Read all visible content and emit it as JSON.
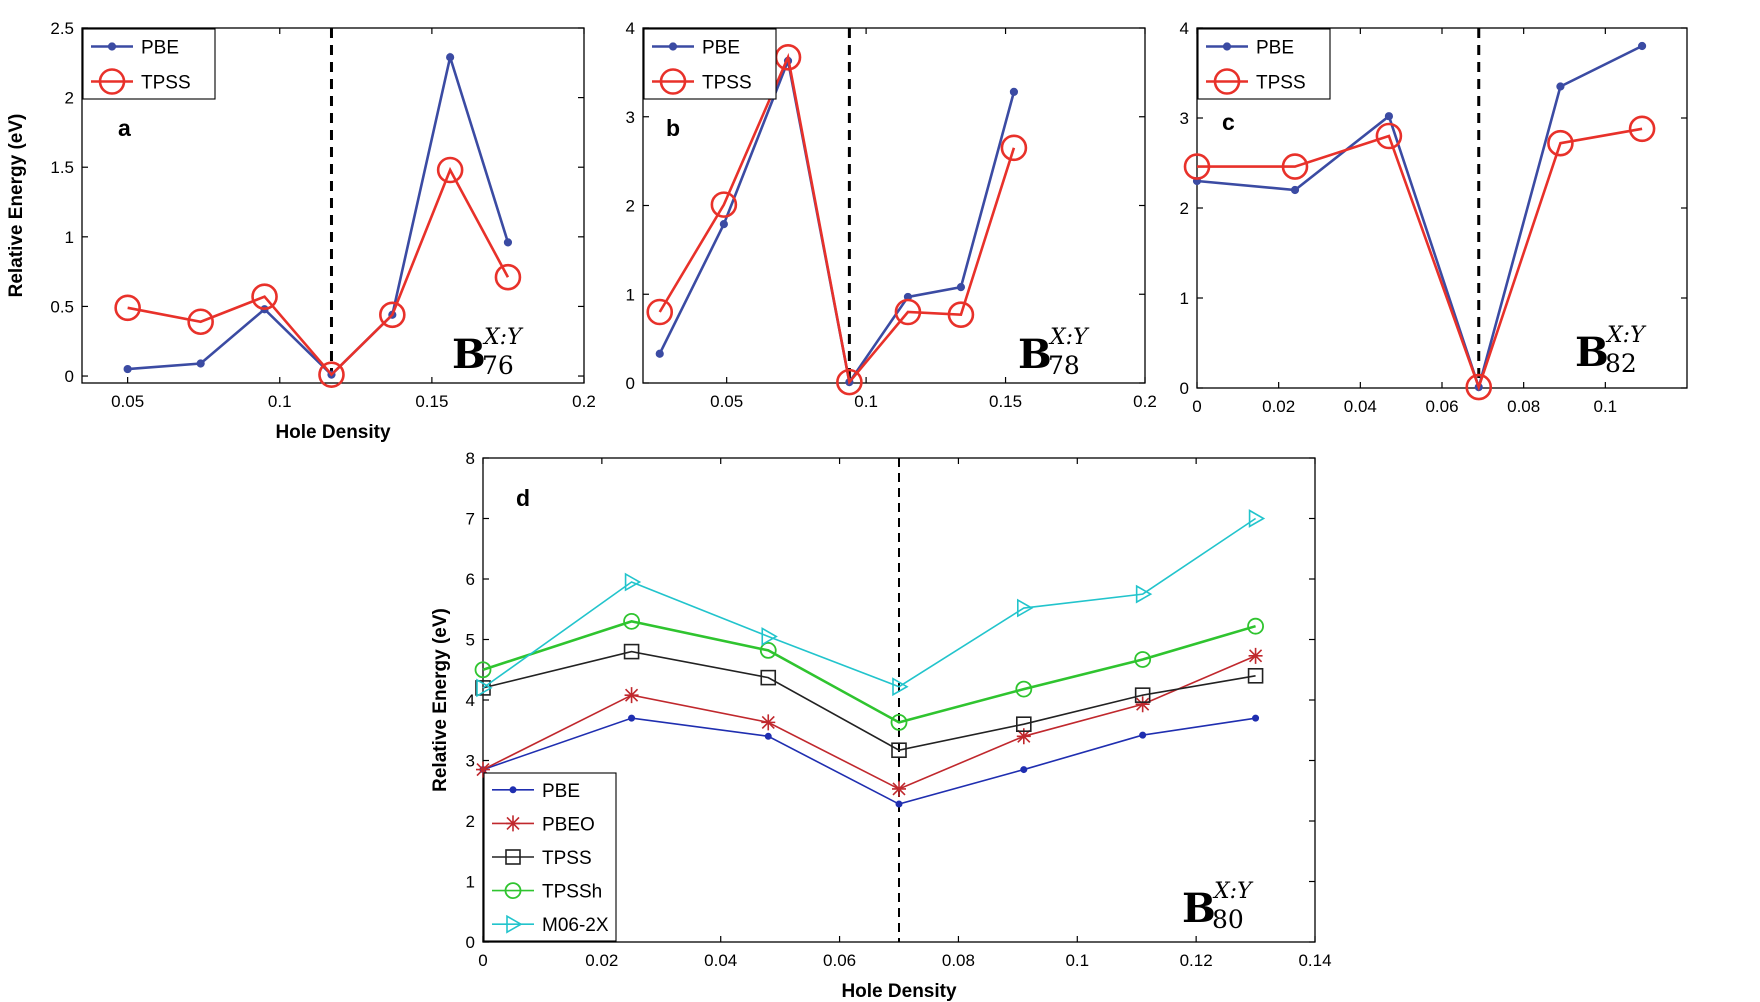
{
  "chart_data": [
    {
      "id": "a",
      "type": "line",
      "panel_label": "a",
      "annotation": {
        "base": "B",
        "subscript": "76",
        "superscript": "X:Y"
      },
      "xlabel": "Hole Density",
      "ylabel": "Relative Energy (eV)",
      "xlim": [
        0.035,
        0.2
      ],
      "ylim": [
        -0.05,
        2.5
      ],
      "xticks": [
        0.05,
        0.1,
        0.15,
        0.2
      ],
      "xtick_labels": [
        "0.05",
        "0.1",
        "0.15",
        "0.2"
      ],
      "yticks": [
        0,
        0.5,
        1,
        1.5,
        2,
        2.5
      ],
      "ytick_labels": [
        "0",
        "0.5",
        "1",
        "1.5",
        "2",
        "2.5"
      ],
      "vline_x": 0.117,
      "legend": {
        "position": "top-left",
        "entries": [
          "PBE",
          "TPSS"
        ]
      },
      "series": [
        {
          "name": "PBE",
          "color": "#3b4ba3",
          "marker": "dot",
          "x": [
            0.05,
            0.074,
            0.095,
            0.117,
            0.137,
            0.156,
            0.175
          ],
          "y": [
            0.05,
            0.09,
            0.48,
            0.01,
            0.44,
            2.29,
            0.96
          ]
        },
        {
          "name": "TPSS",
          "color": "#e8312a",
          "marker": "circle",
          "x": [
            0.05,
            0.074,
            0.095,
            0.117,
            0.137,
            0.156,
            0.175
          ],
          "y": [
            0.49,
            0.39,
            0.57,
            0.01,
            0.44,
            1.48,
            0.71
          ]
        }
      ]
    },
    {
      "id": "b",
      "type": "line",
      "panel_label": "b",
      "annotation": {
        "base": "B",
        "subscript": "78",
        "superscript": "X:Y"
      },
      "xlabel": "",
      "ylabel": "",
      "xlim": [
        0.02,
        0.2
      ],
      "ylim": [
        0,
        4
      ],
      "xticks": [
        0.05,
        0.1,
        0.15,
        0.2
      ],
      "xtick_labels": [
        "0.05",
        "0.1",
        "0.15",
        "0.2"
      ],
      "yticks": [
        0,
        1,
        2,
        3,
        4
      ],
      "ytick_labels": [
        "0",
        "1",
        "2",
        "3",
        "4"
      ],
      "vline_x": 0.094,
      "legend": {
        "position": "top-left",
        "entries": [
          "PBE",
          "TPSS"
        ]
      },
      "series": [
        {
          "name": "PBE",
          "color": "#3b4ba3",
          "marker": "dot",
          "x": [
            0.026,
            0.049,
            0.072,
            0.094,
            0.115,
            0.134,
            0.153
          ],
          "y": [
            0.33,
            1.79,
            3.63,
            0.01,
            0.97,
            1.08,
            3.28
          ]
        },
        {
          "name": "TPSS",
          "color": "#e8312a",
          "marker": "circle",
          "x": [
            0.026,
            0.049,
            0.072,
            0.094,
            0.115,
            0.134,
            0.153
          ],
          "y": [
            0.8,
            2.01,
            3.67,
            0.01,
            0.8,
            0.77,
            2.65
          ]
        }
      ]
    },
    {
      "id": "c",
      "type": "line",
      "panel_label": "c",
      "annotation": {
        "base": "B",
        "subscript": "82",
        "superscript": "X:Y"
      },
      "xlabel": "",
      "ylabel": "",
      "xlim": [
        0,
        0.12
      ],
      "ylim": [
        0,
        4
      ],
      "xticks": [
        0,
        0.02,
        0.04,
        0.06,
        0.08,
        0.1
      ],
      "xtick_labels": [
        "0",
        "0.02",
        "0.04",
        "0.06",
        "0.08",
        "0.1"
      ],
      "yticks": [
        0,
        1,
        2,
        3,
        4
      ],
      "ytick_labels": [
        "0",
        "1",
        "2",
        "3",
        "4"
      ],
      "vline_x": 0.069,
      "legend": {
        "position": "top-left",
        "entries": [
          "PBE",
          "TPSS"
        ]
      },
      "series": [
        {
          "name": "PBE",
          "color": "#3b4ba3",
          "marker": "dot",
          "x": [
            0,
            0.024,
            0.047,
            0.069,
            0.089,
            0.109
          ],
          "y": [
            2.3,
            2.2,
            3.02,
            0.01,
            3.35,
            3.8
          ]
        },
        {
          "name": "TPSS",
          "color": "#e8312a",
          "marker": "circle",
          "x": [
            0,
            0.024,
            0.047,
            0.069,
            0.089,
            0.109
          ],
          "y": [
            2.46,
            2.46,
            2.8,
            0.01,
            2.72,
            2.88
          ]
        }
      ]
    },
    {
      "id": "d",
      "type": "line",
      "panel_label": "d",
      "annotation": {
        "base": "B",
        "subscript": "80",
        "superscript": "X:Y"
      },
      "xlabel": "Hole Density",
      "ylabel": "Relative Energy (eV)",
      "xlim": [
        0,
        0.14
      ],
      "ylim": [
        0,
        8
      ],
      "xticks": [
        0,
        0.02,
        0.04,
        0.06,
        0.08,
        0.1,
        0.12,
        0.14
      ],
      "xtick_labels": [
        "0",
        "0.02",
        "0.04",
        "0.06",
        "0.08",
        "0.1",
        "0.12",
        "0.14"
      ],
      "yticks": [
        0,
        1,
        2,
        3,
        4,
        5,
        6,
        7,
        8
      ],
      "ytick_labels": [
        "0",
        "1",
        "2",
        "3",
        "4",
        "5",
        "6",
        "7",
        "8"
      ],
      "vline_x": 0.07,
      "legend": {
        "position": "bottom-left",
        "entries": [
          "PBE",
          "PBEO",
          "TPSS",
          "TPSSh",
          "M06-2X"
        ]
      },
      "series": [
        {
          "name": "PBE",
          "color": "#1f2eb0",
          "marker": "dot",
          "x": [
            0,
            0.025,
            0.048,
            0.07,
            0.091,
            0.111,
            0.13
          ],
          "y": [
            2.85,
            3.7,
            3.4,
            2.28,
            2.85,
            3.42,
            3.7
          ]
        },
        {
          "name": "PBEO",
          "color": "#c0282d",
          "marker": "star",
          "x": [
            0,
            0.025,
            0.048,
            0.07,
            0.091,
            0.111,
            0.13
          ],
          "y": [
            2.85,
            4.08,
            3.63,
            2.53,
            3.4,
            3.93,
            4.73
          ]
        },
        {
          "name": "TPSS",
          "color": "#222222",
          "marker": "square",
          "x": [
            0,
            0.025,
            0.048,
            0.07,
            0.091,
            0.111,
            0.13
          ],
          "y": [
            4.2,
            4.8,
            4.37,
            3.17,
            3.6,
            4.08,
            4.4
          ]
        },
        {
          "name": "TPSSh",
          "color": "#2fc42f",
          "marker": "circle",
          "x": [
            0,
            0.025,
            0.048,
            0.07,
            0.091,
            0.111,
            0.13
          ],
          "y": [
            4.5,
            5.3,
            4.82,
            3.63,
            4.18,
            4.67,
            5.22
          ]
        },
        {
          "name": "M06-2X",
          "color": "#22c4cc",
          "marker": "triangle-right",
          "x": [
            0,
            0.025,
            0.048,
            0.07,
            0.091,
            0.111,
            0.13
          ],
          "y": [
            4.2,
            5.95,
            5.05,
            4.22,
            5.52,
            5.75,
            7.0
          ]
        }
      ]
    }
  ]
}
